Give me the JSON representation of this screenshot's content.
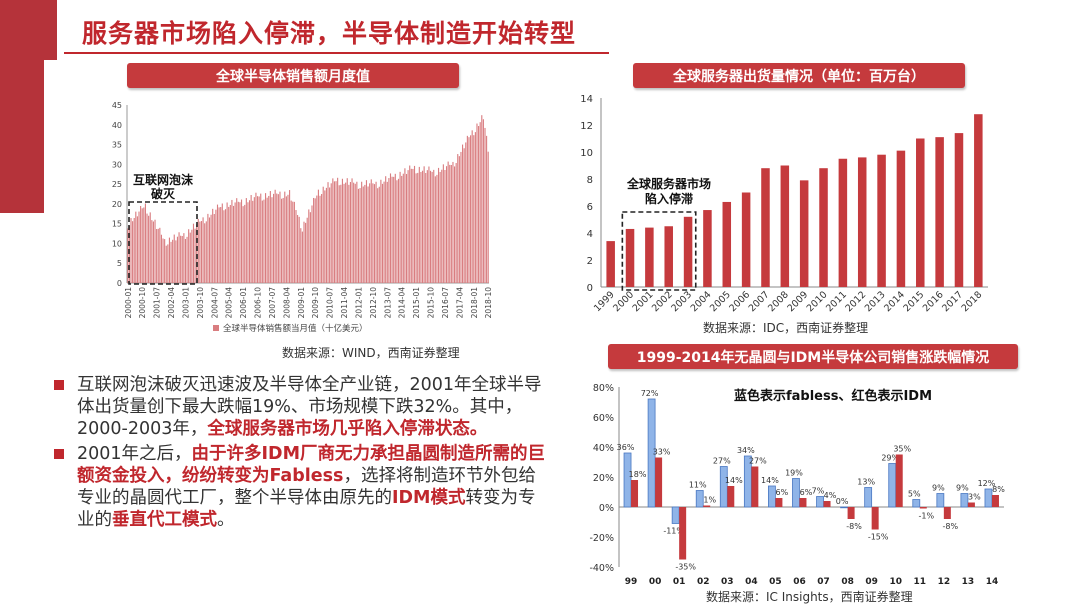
{
  "page": {
    "title": "服务器市场陷入停滞，半导体制造开始转型"
  },
  "colors": {
    "accent": "#c0272d",
    "bar_red": "#c53a3d",
    "bar_blue": "#8fb4e8",
    "blue_border": "#4a78c2"
  },
  "left_chart_header": "全球半导体销售额月度值",
  "left_chart_source": "数据来源：WIND，西南证券整理",
  "right_top_header": "全球服务器出货量情况（单位：百万台）",
  "right_top_source": "数据来源：IDC，西南证券整理",
  "right_bottom_header": "1999-2014年无晶圆与IDM半导体公司销售涨跌幅情况",
  "right_bottom_source": "数据来源：IC Insights，西南证券整理",
  "bullets": [
    {
      "segments": [
        {
          "text": "互联网泡沫破灭迅速波及半导体全产业链，2001年全球半导体出货量创下最大跌幅19%、市场规模下跌32%。其中，2000-2003年，",
          "bold": false
        },
        {
          "text": "全球服务器市场几乎陷入停滞状态。",
          "bold": true
        }
      ]
    },
    {
      "segments": [
        {
          "text": "2001年之后，",
          "bold": false
        },
        {
          "text": "由于许多IDM厂商无力承担晶圆制造所需的巨额资金投入，纷纷转变为Fabless",
          "bold": true
        },
        {
          "text": "，选择将制造环节外包给专业的晶圆代工厂，整个半导体由原先的",
          "bold": false
        },
        {
          "text": "IDM模式",
          "bold": true
        },
        {
          "text": "转变为专业的",
          "bold": false
        },
        {
          "text": "垂直代工模式",
          "bold": true
        },
        {
          "text": "。",
          "bold": false
        }
      ]
    }
  ],
  "chart_data": [
    {
      "type": "bar",
      "xlabel": "",
      "ylabel": "",
      "legend": "全球半导体销售额当月值（十亿美元）",
      "legend_position": "bottom",
      "ylim": [
        0,
        45
      ],
      "yticks": [
        0,
        5,
        10,
        15,
        20,
        25,
        30,
        35,
        40,
        45
      ],
      "xtick_labels": [
        "2000-01",
        "2000-10",
        "2001-07",
        "2002-04",
        "2003-01",
        "2003-10",
        "2004-07",
        "2005-04",
        "2006-01",
        "2006-10",
        "2007-07",
        "2008-04",
        "2009-01",
        "2009-10",
        "2010-07",
        "2011-04",
        "2012-01",
        "2012-10",
        "2013-07",
        "2014-04",
        "2015-01",
        "2015-10",
        "2016-07",
        "2017-04",
        "2018-01",
        "2018-10"
      ],
      "annotation": "互联网泡沫破灭",
      "monthly_series_anchors": [
        {
          "month": "2000-01",
          "value": 15
        },
        {
          "month": "2000-12",
          "value": 19.5
        },
        {
          "month": "2001-12",
          "value": 10.5
        },
        {
          "month": "2002-12",
          "value": 12
        },
        {
          "month": "2003-12",
          "value": 16
        },
        {
          "month": "2004-12",
          "value": 19.5
        },
        {
          "month": "2005-12",
          "value": 20.5
        },
        {
          "month": "2006-12",
          "value": 22
        },
        {
          "month": "2007-12",
          "value": 22.5
        },
        {
          "month": "2008-06",
          "value": 22.5
        },
        {
          "month": "2009-02",
          "value": 14
        },
        {
          "month": "2009-12",
          "value": 23
        },
        {
          "month": "2010-12",
          "value": 26
        },
        {
          "month": "2011-12",
          "value": 25
        },
        {
          "month": "2012-12",
          "value": 25
        },
        {
          "month": "2013-12",
          "value": 27
        },
        {
          "month": "2014-12",
          "value": 29
        },
        {
          "month": "2015-12",
          "value": 28
        },
        {
          "month": "2016-12",
          "value": 30
        },
        {
          "month": "2017-12",
          "value": 38
        },
        {
          "month": "2018-07",
          "value": 42
        },
        {
          "month": "2018-10",
          "value": 33
        }
      ]
    },
    {
      "type": "bar",
      "categories": [
        "1999",
        "2000",
        "2001",
        "2002",
        "2003",
        "2004",
        "2005",
        "2006",
        "2007",
        "2008",
        "2009",
        "2010",
        "2011",
        "2012",
        "2013",
        "2014",
        "2015",
        "2016",
        "2017",
        "2018"
      ],
      "values": [
        3.4,
        4.3,
        4.4,
        4.5,
        5.2,
        5.7,
        6.3,
        7.0,
        8.8,
        9.0,
        7.9,
        8.8,
        9.5,
        9.6,
        9.8,
        10.1,
        11.0,
        11.1,
        11.4,
        12.8
      ],
      "ylim": [
        0,
        14
      ],
      "yticks": [
        0,
        2,
        4,
        6,
        8,
        10,
        12,
        14
      ],
      "annotation": "全球服务器市场陷入停滞"
    },
    {
      "type": "bar",
      "note": "蓝色表示fabless、红色表示IDM",
      "categories": [
        "99",
        "00",
        "01",
        "02",
        "03",
        "04",
        "05",
        "06",
        "07",
        "08",
        "09",
        "10",
        "11",
        "12",
        "13",
        "14"
      ],
      "ylim": [
        -40,
        80
      ],
      "yticks": [
        "-40%",
        "-20%",
        "0%",
        "20%",
        "40%",
        "60%",
        "80%"
      ],
      "series": [
        {
          "name": "fabless",
          "color": "#8fb4e8",
          "values": [
            36,
            72,
            -11,
            11,
            27,
            34,
            14,
            19,
            7,
            0,
            13,
            29,
            5,
            9,
            9,
            12
          ],
          "labels": [
            "36%",
            "72%",
            "-11%",
            "11%",
            "27%",
            "34%",
            "14%",
            "19%",
            "7%",
            "0%",
            "13%",
            "29%",
            "5%",
            "9%",
            "9%",
            "12%"
          ]
        },
        {
          "name": "IDM",
          "color": "#c53a3d",
          "values": [
            18,
            33,
            -35,
            1,
            14,
            27,
            6,
            6,
            4,
            -8,
            -15,
            35,
            -1,
            -8,
            3,
            8
          ],
          "labels": [
            "18%",
            "33%",
            "-35%",
            "1%",
            "14%",
            "27%",
            "6%",
            "6%",
            "4%",
            "-8%",
            "-15%",
            "35%",
            "-1%",
            "-8%",
            "3%",
            "8%"
          ]
        }
      ]
    }
  ]
}
